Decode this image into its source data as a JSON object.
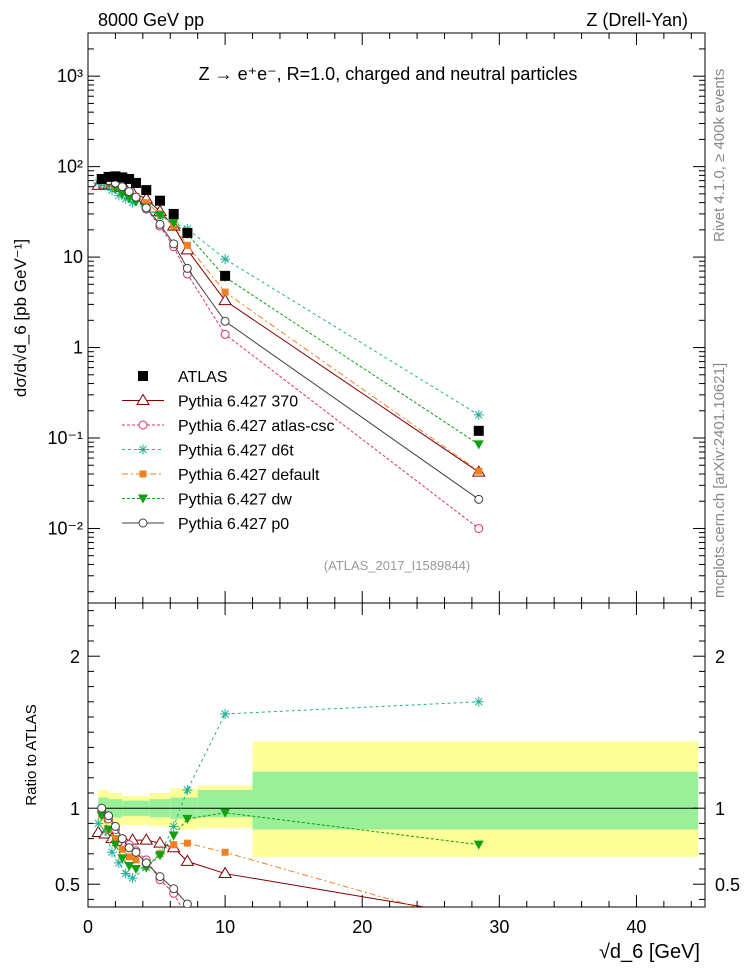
{
  "header": {
    "left": "8000 GeV pp",
    "right": "Z (Drell-Yan)"
  },
  "side_labels": {
    "rivet": "Rivet 4.1.0, ≥ 400k events",
    "mcplots": "mcplots.cern.ch [arXiv:2401.10621]"
  },
  "colors": {
    "atlas": "#000000",
    "p370": "#800000",
    "atlascsc": "#e0306a",
    "d6t": "#20b09a",
    "default": "#f08020",
    "dw": "#10a010",
    "p0": "#404040",
    "band_yellow": "#ffff99",
    "band_green": "#99f099"
  },
  "chart_data": [
    {
      "type": "line",
      "title": "Z → e⁺e⁻, R=1.0, charged and neutral particles",
      "ref_label": "(ATLAS_2017_I1589844)",
      "ylabel": "dσ/d√d_6 [pb GeV⁻¹]",
      "yscale": "log",
      "ylim": [
        0.0015,
        3000
      ],
      "xlim": [
        0,
        45
      ],
      "ytick_labels": [
        "10⁻²",
        "10⁻¹",
        "1",
        "10",
        "10²",
        "10³"
      ],
      "series": [
        {
          "name": "ATLAS",
          "key": "atlas",
          "marker": "square",
          "x": [
            1.0,
            1.5,
            2.0,
            2.5,
            3.0,
            3.5,
            4.25,
            5.25,
            6.25,
            7.25,
            10.0,
            28.5
          ],
          "y": [
            73,
            77,
            78,
            76,
            73,
            66,
            55,
            42,
            30,
            18.5,
            6.2,
            0.12
          ]
        },
        {
          "name": "Pythia 6.427 370",
          "key": "p370",
          "marker": "triangle-up",
          "dash": "",
          "x": [
            0.75,
            1.25,
            1.75,
            2.25,
            2.75,
            3.25,
            4.25,
            5.25,
            6.25,
            7.25,
            10.0,
            28.5
          ],
          "y": [
            62,
            64,
            62,
            59,
            56,
            52,
            44,
            32,
            22,
            12,
            3.3,
            0.042
          ]
        },
        {
          "name": "Pythia 6.427 atlas-csc",
          "key": "atlascsc",
          "marker": "circle-open",
          "dash": "3,2",
          "x": [
            1.0,
            1.5,
            2.0,
            2.5,
            3.0,
            3.5,
            4.25,
            5.25,
            6.25,
            7.25,
            10.0,
            28.5
          ],
          "y": [
            68,
            66,
            60,
            55,
            50,
            44,
            34,
            22,
            13,
            6.5,
            1.4,
            0.01
          ]
        },
        {
          "name": "Pythia 6.427 d6t",
          "key": "d6t",
          "marker": "star",
          "dash": "3,3",
          "x": [
            0.75,
            1.25,
            1.75,
            2.25,
            2.75,
            3.25,
            4.25,
            5.25,
            6.25,
            7.25,
            10.0,
            28.5
          ],
          "y": [
            66,
            62,
            55,
            48,
            44,
            40,
            34,
            28,
            24,
            20.5,
            9.5,
            0.18
          ]
        },
        {
          "name": "Pythia 6.427 default",
          "key": "default",
          "marker": "square-small",
          "dash": "6,3,2,3",
          "x": [
            1.0,
            1.5,
            2.0,
            2.5,
            3.0,
            3.5,
            4.25,
            5.25,
            6.25,
            7.25,
            10.0,
            28.5
          ],
          "y": [
            70,
            66,
            60,
            55,
            51,
            47,
            40,
            30,
            22,
            13.5,
            4.1,
            0.043
          ]
        },
        {
          "name": "Pythia 6.427 dw",
          "key": "dw",
          "marker": "triangle-down",
          "dash": "3,2",
          "x": [
            1.0,
            1.5,
            2.0,
            2.5,
            3.0,
            3.5,
            4.25,
            5.25,
            6.25,
            7.25,
            10.0,
            28.5
          ],
          "y": [
            70,
            66,
            58,
            50,
            45,
            41,
            35,
            29,
            24,
            18,
            6.0,
            0.085
          ]
        },
        {
          "name": "Pythia 6.427 p0",
          "key": "p0",
          "marker": "circle-open",
          "dash": "",
          "x": [
            1.0,
            1.5,
            2.0,
            2.5,
            3.0,
            3.5,
            4.25,
            5.25,
            6.25,
            7.25,
            10.0,
            28.5
          ],
          "y": [
            72,
            70,
            66,
            60,
            53,
            46,
            35,
            23,
            14,
            7.5,
            1.95,
            0.021
          ]
        }
      ]
    },
    {
      "type": "line",
      "title": "ratio",
      "ylabel": "Ratio to ATLAS",
      "xlabel": "√d_6 [GeV]",
      "ylim": [
        0.35,
        2.35
      ],
      "xlim": [
        0,
        45
      ],
      "yticks": [
        0.5,
        1,
        2
      ],
      "ytick_labels": [
        "0.5",
        "1",
        "2"
      ],
      "xticks": [
        0,
        10,
        20,
        30,
        40
      ],
      "xtick_labels": [
        "0",
        "10",
        "20",
        "30",
        "40"
      ],
      "bands": [
        {
          "x0": 0.75,
          "x1": 1.5,
          "yellow": [
            0.87,
            1.12
          ],
          "green": [
            0.93,
            1.07
          ]
        },
        {
          "x0": 1.5,
          "x1": 2.5,
          "yellow": [
            0.88,
            1.1
          ],
          "green": [
            0.94,
            1.06
          ]
        },
        {
          "x0": 2.5,
          "x1": 4.5,
          "yellow": [
            0.89,
            1.08
          ],
          "green": [
            0.95,
            1.05
          ]
        },
        {
          "x0": 4.5,
          "x1": 6.0,
          "yellow": [
            0.88,
            1.1
          ],
          "green": [
            0.94,
            1.06
          ]
        },
        {
          "x0": 6.0,
          "x1": 8.0,
          "yellow": [
            0.86,
            1.13
          ],
          "green": [
            0.93,
            1.07
          ]
        },
        {
          "x0": 8.0,
          "x1": 12.0,
          "yellow": [
            0.87,
            1.15
          ],
          "green": [
            0.94,
            1.12
          ]
        },
        {
          "x0": 12.0,
          "x1": 44.5,
          "yellow": [
            0.68,
            1.44
          ],
          "green": [
            0.86,
            1.24
          ]
        }
      ],
      "series": [
        {
          "name": "Pythia 6.427 370",
          "key": "p370",
          "x": [
            0.75,
            1.25,
            1.75,
            2.25,
            2.75,
            3.25,
            4.25,
            5.25,
            6.25,
            7.25,
            10.0,
            24.5
          ],
          "y": [
            0.84,
            0.83,
            0.8,
            0.78,
            0.77,
            0.79,
            0.79,
            0.77,
            0.74,
            0.65,
            0.57,
            0.35
          ]
        },
        {
          "name": "Pythia 6.427 atlas-csc",
          "key": "atlascsc",
          "x": [
            1.0,
            1.5,
            2.0,
            2.5,
            3.0,
            3.5,
            4.25,
            5.25,
            6.25,
            6.8
          ],
          "y": [
            0.98,
            0.93,
            0.86,
            0.8,
            0.76,
            0.72,
            0.66,
            0.53,
            0.44,
            0.35
          ]
        },
        {
          "name": "Pythia 6.427 d6t",
          "key": "d6t",
          "x": [
            0.75,
            1.25,
            1.75,
            2.25,
            2.75,
            3.25,
            4.25,
            5.25,
            6.25,
            7.25,
            10.0,
            28.5
          ],
          "y": [
            0.9,
            0.85,
            0.71,
            0.64,
            0.57,
            0.54,
            0.61,
            0.7,
            0.88,
            1.12,
            1.62,
            1.7
          ]
        },
        {
          "name": "Pythia 6.427 default",
          "key": "default",
          "x": [
            1.0,
            1.5,
            2.0,
            2.5,
            3.0,
            3.5,
            4.25,
            5.25,
            6.25,
            7.25,
            10.0,
            24.0
          ],
          "y": [
            0.96,
            0.86,
            0.8,
            0.73,
            0.68,
            0.66,
            0.62,
            0.7,
            0.76,
            0.77,
            0.71,
            0.35
          ]
        },
        {
          "name": "Pythia 6.427 dw",
          "key": "dw",
          "x": [
            1.0,
            1.5,
            2.0,
            2.5,
            3.0,
            3.5,
            4.25,
            5.25,
            6.25,
            7.25,
            10.0,
            28.5
          ],
          "y": [
            0.95,
            0.86,
            0.76,
            0.67,
            0.62,
            0.6,
            0.61,
            0.69,
            0.82,
            0.93,
            0.97,
            0.76
          ]
        },
        {
          "name": "Pythia 6.427 p0",
          "key": "p0",
          "x": [
            1.0,
            1.5,
            2.0,
            2.5,
            3.0,
            3.5,
            4.25,
            5.25,
            6.25,
            7.25
          ],
          "y": [
            1.0,
            0.95,
            0.88,
            0.8,
            0.74,
            0.71,
            0.64,
            0.55,
            0.47,
            0.37
          ]
        }
      ]
    }
  ]
}
